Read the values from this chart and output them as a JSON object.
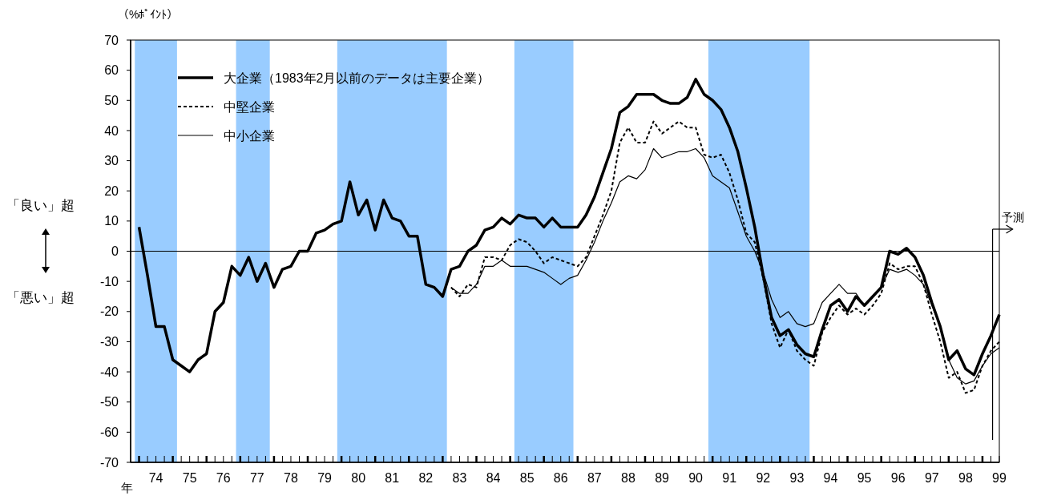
{
  "chart_data": {
    "type": "line",
    "ylabel": "（%ﾎﾟｲﾝﾄ）",
    "xlabel": "年",
    "annotations": [
      "「良い」超",
      "「悪い」超"
    ],
    "legend": "top left",
    "x": [
      73.5,
      73.75,
      74,
      74.25,
      74.5,
      74.75,
      75,
      75.25,
      75.5,
      75.75,
      76,
      76.25,
      76.5,
      76.75,
      77,
      77.25,
      77.5,
      77.75,
      78,
      78.25,
      78.5,
      78.75,
      79,
      79.25,
      79.5,
      79.75,
      80,
      80.25,
      80.5,
      80.75,
      81,
      81.25,
      81.5,
      81.75,
      82,
      82.25,
      82.5,
      82.75,
      83,
      83.25,
      83.5,
      83.75,
      84,
      84.25,
      84.5,
      84.75,
      85,
      85.25,
      85.5,
      85.75,
      86,
      86.25,
      86.5,
      86.75,
      87,
      87.25,
      87.5,
      87.75,
      88,
      88.25,
      88.5,
      88.75,
      89,
      89.25,
      89.5,
      89.75,
      90,
      90.25,
      90.5,
      90.75,
      91,
      91.25,
      91.5,
      91.75,
      92,
      92.25,
      92.5,
      92.75,
      93,
      93.25,
      93.5,
      93.75,
      94,
      94.25,
      94.5,
      94.75,
      95,
      95.25,
      95.5,
      95.75,
      96,
      96.25,
      96.5,
      96.75,
      97,
      97.25,
      97.5,
      97.75,
      98,
      98.25,
      98.5,
      98.75,
      99
    ],
    "xlim": [
      73.25,
      99
    ],
    "xticks": [
      {
        "value": 73.5,
        "label": null
      },
      {
        "value": 73.75,
        "label": null
      },
      74,
      {
        "value": 74.25,
        "label": null
      },
      {
        "value": 74.5,
        "label": null
      },
      {
        "value": 74.75,
        "label": null
      },
      75,
      {
        "value": 75.25,
        "label": null
      },
      {
        "value": 75.5,
        "label": null
      },
      {
        "value": 75.75,
        "label": null
      },
      76,
      {
        "value": 76.25,
        "label": null
      },
      {
        "value": 76.5,
        "label": null
      },
      {
        "value": 76.75,
        "label": null
      },
      77,
      {
        "value": 77.25,
        "label": null
      },
      {
        "value": 77.5,
        "label": null
      },
      {
        "value": 77.75,
        "label": null
      },
      78,
      {
        "value": 78.25,
        "label": null
      },
      {
        "value": 78.5,
        "label": null
      },
      {
        "value": 78.75,
        "label": null
      },
      79,
      {
        "value": 79.25,
        "label": null
      },
      {
        "value": 79.5,
        "label": null
      },
      {
        "value": 79.75,
        "label": null
      },
      80,
      {
        "value": 80.25,
        "label": null
      },
      {
        "value": 80.5,
        "label": null
      },
      {
        "value": 80.75,
        "label": null
      },
      81,
      {
        "value": 81.25,
        "label": null
      },
      {
        "value": 81.5,
        "label": null
      },
      {
        "value": 81.75,
        "label": null
      },
      82,
      {
        "value": 82.25,
        "label": null
      },
      {
        "value": 82.5,
        "label": null
      },
      {
        "value": 82.75,
        "label": null
      },
      83,
      {
        "value": 83.25,
        "label": null
      },
      {
        "value": 83.5,
        "label": null
      },
      {
        "value": 83.75,
        "label": null
      },
      84,
      {
        "value": 84.25,
        "label": null
      },
      {
        "value": 84.5,
        "label": null
      },
      {
        "value": 84.75,
        "label": null
      },
      85,
      {
        "value": 85.25,
        "label": null
      },
      {
        "value": 85.5,
        "label": null
      },
      {
        "value": 85.75,
        "label": null
      },
      86,
      {
        "value": 86.25,
        "label": null
      },
      {
        "value": 86.5,
        "label": null
      },
      {
        "value": 86.75,
        "label": null
      },
      87,
      {
        "value": 87.25,
        "label": null
      },
      {
        "value": 87.5,
        "label": null
      },
      {
        "value": 87.75,
        "label": null
      },
      88,
      {
        "value": 88.25,
        "label": null
      },
      {
        "value": 88.5,
        "label": null
      },
      {
        "value": 88.75,
        "label": null
      },
      89,
      {
        "value": 89.25,
        "label": null
      },
      {
        "value": 89.5,
        "label": null
      },
      {
        "value": 89.75,
        "label": null
      },
      90,
      {
        "value": 90.25,
        "label": null
      },
      {
        "value": 90.5,
        "label": null
      },
      {
        "value": 90.75,
        "label": null
      },
      91,
      {
        "value": 91.25,
        "label": null
      },
      {
        "value": 91.5,
        "label": null
      },
      {
        "value": 91.75,
        "label": null
      },
      92,
      {
        "value": 92.25,
        "label": null
      },
      {
        "value": 92.5,
        "label": null
      },
      {
        "value": 92.75,
        "label": null
      },
      93,
      {
        "value": 93.25,
        "label": null
      },
      {
        "value": 93.5,
        "label": null
      },
      {
        "value": 93.75,
        "label": null
      },
      94,
      {
        "value": 94.25,
        "label": null
      },
      {
        "value": 94.5,
        "label": null
      },
      {
        "value": 94.75,
        "label": null
      },
      95,
      {
        "value": 95.25,
        "label": null
      },
      {
        "value": 95.5,
        "label": null
      },
      {
        "value": 95.75,
        "label": null
      },
      96,
      {
        "value": 96.25,
        "label": null
      },
      {
        "value": 96.5,
        "label": null
      },
      {
        "value": 96.75,
        "label": null
      },
      97,
      {
        "value": 97.25,
        "label": null
      },
      {
        "value": 97.5,
        "label": null
      },
      {
        "value": 97.75,
        "label": null
      },
      98,
      {
        "value": 98.25,
        "label": null
      },
      {
        "value": 98.5,
        "label": null
      },
      {
        "value": 98.75,
        "label": null
      },
      99
    ],
    "ylim": [
      -70,
      70
    ],
    "yticks": [
      -70,
      -60,
      -50,
      -40,
      -30,
      -20,
      -10,
      0,
      10,
      20,
      30,
      40,
      50,
      60,
      70
    ],
    "bands": [
      {
        "axis": "x",
        "from": 73.375,
        "to": 74.625,
        "color": "#99ccff"
      },
      {
        "axis": "x",
        "from": 76.375,
        "to": 77.375,
        "color": "#99ccff"
      },
      {
        "axis": "x",
        "from": 79.375,
        "to": 82.625,
        "color": "#99ccff"
      },
      {
        "axis": "x",
        "from": 84.625,
        "to": 86.375,
        "color": "#99ccff"
      },
      {
        "axis": "x",
        "from": 90.375,
        "to": 93.375,
        "color": "#99ccff"
      }
    ],
    "ref_lines": [
      {
        "axis": "y",
        "value": 0,
        "color": "#000000"
      },
      {
        "axis": "x",
        "value": 98.8,
        "label": "予測",
        "color": "#000000"
      }
    ],
    "series": [
      {
        "name": "大企業（1983年2月以前のデータは主要企業）",
        "color": "#000000",
        "line_style": "solid",
        "values": [
          8,
          -8,
          -25,
          -25,
          -36,
          -38,
          -40,
          -36,
          -34,
          -20,
          -17,
          -5,
          -8,
          -2,
          -10,
          -4,
          -12,
          -6,
          -5,
          0,
          0,
          6,
          7,
          9,
          10,
          23,
          12,
          17,
          7,
          17,
          11,
          10,
          5,
          5,
          -11,
          -12,
          -15,
          -6,
          -5,
          0,
          2,
          7,
          8,
          11,
          9,
          12,
          11,
          11,
          8,
          11,
          8,
          8,
          8,
          12,
          18,
          26,
          34,
          46,
          48,
          52,
          52,
          52,
          50,
          49,
          49,
          51,
          57,
          52,
          50,
          47,
          41,
          33,
          21,
          8,
          -8,
          -22,
          -28,
          -26,
          -31,
          -34,
          -35,
          -26,
          -18,
          -16,
          -20,
          -15,
          -18,
          -15,
          -12,
          0,
          -1,
          1,
          -2,
          -8,
          -17,
          -25,
          -36,
          -33,
          -39,
          -41,
          -34,
          -28,
          -21
        ]
      },
      {
        "name": "中堅企業",
        "color": "#000000",
        "line_style": "dashed",
        "values": [
          null,
          null,
          null,
          null,
          null,
          null,
          null,
          null,
          null,
          null,
          null,
          null,
          null,
          null,
          null,
          null,
          null,
          null,
          null,
          null,
          null,
          null,
          null,
          null,
          null,
          null,
          null,
          null,
          null,
          null,
          null,
          null,
          null,
          null,
          null,
          null,
          null,
          -12,
          -15,
          -11,
          -12,
          -2,
          -2,
          -3,
          2,
          4,
          3,
          0,
          -4,
          -2,
          -3,
          -4,
          -5,
          -2,
          5,
          12,
          20,
          36,
          41,
          36,
          36,
          43,
          39,
          41,
          43,
          41,
          41,
          32,
          31,
          32,
          26,
          17,
          6,
          3,
          -9,
          -24,
          -32,
          -26,
          -33,
          -36,
          -38,
          -27,
          -22,
          -18,
          -21,
          -19,
          -21,
          -18,
          -14,
          -4,
          -6,
          -5,
          -5,
          -11,
          -21,
          -30,
          -42,
          -40,
          -47,
          -46,
          -38,
          -33,
          -30
        ]
      },
      {
        "name": "中小企業",
        "color": "#000000",
        "line_style": "solid",
        "values": [
          null,
          null,
          null,
          null,
          null,
          null,
          null,
          null,
          null,
          null,
          null,
          null,
          null,
          null,
          null,
          null,
          null,
          null,
          null,
          null,
          null,
          null,
          null,
          null,
          null,
          null,
          null,
          null,
          null,
          null,
          null,
          null,
          null,
          null,
          null,
          null,
          null,
          -12,
          -14,
          -14,
          -11,
          -5,
          -5,
          -3,
          -5,
          -5,
          -5,
          -6,
          -7,
          -9,
          -11,
          -9,
          -8,
          -3,
          3,
          10,
          16,
          23,
          25,
          24,
          27,
          34,
          31,
          32,
          33,
          33,
          34,
          31,
          25,
          23,
          21,
          13,
          5,
          0,
          -7,
          -16,
          -22,
          -20,
          -24,
          -25,
          -24,
          -17,
          -14,
          -11,
          -14,
          -14,
          -18,
          -15,
          -12,
          -6,
          -7,
          -6,
          -8,
          -11,
          -18,
          -25,
          -36,
          -42,
          -44,
          -43,
          -38,
          -34,
          -32
        ]
      }
    ]
  }
}
